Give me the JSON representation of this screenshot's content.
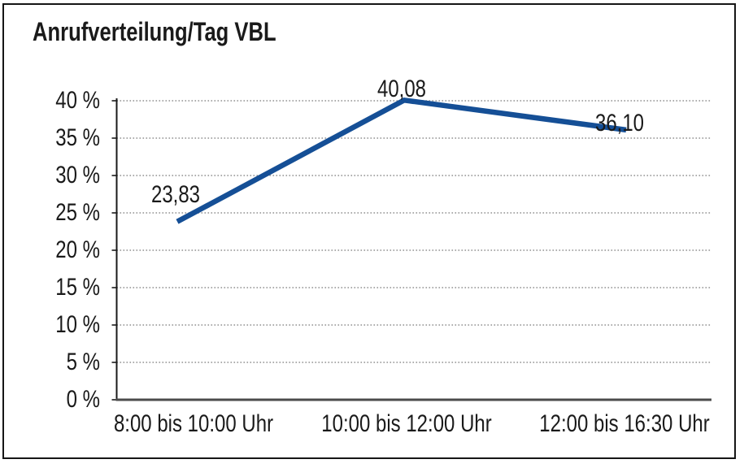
{
  "window": {
    "background": "#ffffff",
    "frame_border_color": "#161616"
  },
  "chart_data": {
    "type": "line",
    "title": "Anrufverteilung/Tag VBL",
    "categories": [
      "8:00 bis 10:00 Uhr",
      "10:00 bis 12:00 Uhr",
      "12:00 bis 16:30 Uhr"
    ],
    "series": [
      {
        "name": "Anrufverteilung/Tag VBL",
        "values": [
          23.83,
          40.08,
          36.1
        ]
      }
    ],
    "data_labels": [
      "23,83",
      "40,08",
      "36,10"
    ],
    "xlabel": "",
    "ylabel": "",
    "ylim": [
      0,
      40
    ],
    "ytick_values": [
      0,
      5,
      10,
      15,
      20,
      25,
      30,
      35,
      40
    ],
    "ytick_labels": [
      "0 %",
      "5 %",
      "10 %",
      "15 %",
      "20 %",
      "25 %",
      "30 %",
      "35 %",
      "40 %"
    ],
    "legend": "none",
    "grid": "horizontal-dotted",
    "line_color": "#154f96",
    "grid_color": "#8f8f8f",
    "axis_color": "#1a1a1a",
    "x_axis_color": "#4b4b4b",
    "text_color": "#1a1a1a"
  }
}
